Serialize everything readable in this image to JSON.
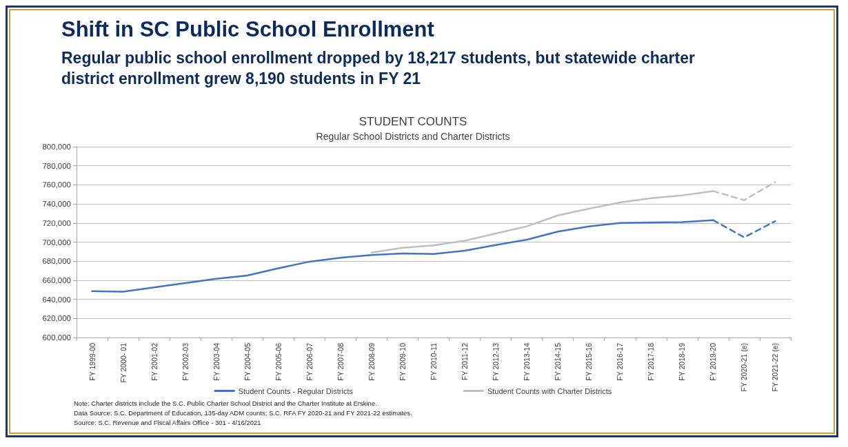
{
  "chart_data": {
    "type": "line",
    "title": "Shift in SC Public School Enrollment",
    "subtitle": "Regular public school enrollment dropped by 18,217 students, but statewide charter district enrollment grew 8,190 students in FY 21",
    "annotations": [
      "STUDENT COUNTS",
      "Regular School Districts and Charter Districts",
      "Note: Charter districts include the S.C. Public Charter School District and the Charter Institute at Erskine.",
      "Data Source: S.C. Department of Education, 135-day ADM counts; S.C. RFA FY 2020-21 and FY 2021-22 estimates.",
      "Source: S.C. Revenue and Fiscal Affairs Office - 301 - 4/16/2021"
    ],
    "categories": [
      "FY 1999-00",
      "FY 2000- 01",
      "FY 2001-02",
      "FY 2002-03",
      "FY 2003-04",
      "FY 2004-05",
      "FY 2005-06",
      "FY 2006-07",
      "FY 2007-08",
      "FY 2008-09",
      "FY 2009-10",
      "FY 2010-11",
      "FY 2011-12",
      "FY 2012-13",
      "FY 2013-14",
      "FY 2014-15",
      "FY 2015-16",
      "FY 2016-17",
      "FY 2017-18",
      "FY 2018-19",
      "FY 2019-20",
      "FY 2020-21 (e)",
      "FY 2021-22 (e)"
    ],
    "series": [
      {
        "name": "Student Counts - Regular Districts",
        "color": "#4472c4",
        "values": [
          648500,
          648000,
          652500,
          657000,
          661500,
          665000,
          672500,
          679500,
          683500,
          686500,
          688000,
          687500,
          691000,
          697000,
          702500,
          711000,
          716500,
          720000,
          720500,
          721000,
          723000,
          null,
          null
        ]
      },
      {
        "color": "#4472c4",
        "line_style": "dashed",
        "values": [
          null,
          null,
          null,
          null,
          null,
          null,
          null,
          null,
          null,
          null,
          null,
          null,
          null,
          null,
          null,
          null,
          null,
          null,
          null,
          null,
          723000,
          705000,
          722000
        ]
      },
      {
        "name": "Student Counts with Charter Districts",
        "color": "#bfbfbf",
        "values": [
          null,
          null,
          null,
          null,
          null,
          null,
          null,
          null,
          null,
          689000,
          694000,
          696500,
          701500,
          709000,
          716500,
          728000,
          735000,
          741500,
          746000,
          749000,
          753500,
          null,
          null
        ]
      },
      {
        "color": "#bfbfbf",
        "line_style": "dashed",
        "values": [
          null,
          null,
          null,
          null,
          null,
          null,
          null,
          null,
          null,
          null,
          null,
          null,
          null,
          null,
          null,
          null,
          null,
          null,
          null,
          null,
          753500,
          744000,
          763000
        ]
      }
    ],
    "ylim": [
      600000,
      800000
    ],
    "yticks": [
      {
        "value": 600000,
        "label": "600,000"
      },
      {
        "value": 620000,
        "label": "620,000"
      },
      {
        "value": 640000,
        "label": "640,000"
      },
      {
        "value": 660000,
        "label": "660,000"
      },
      {
        "value": 680000,
        "label": "680,000"
      },
      {
        "value": 700000,
        "label": "700,000"
      },
      {
        "value": 720000,
        "label": "720,000"
      },
      {
        "value": 740000,
        "label": "740,000"
      },
      {
        "value": 760000,
        "label": "760,000"
      },
      {
        "value": 780000,
        "label": "780,000"
      },
      {
        "value": 800000,
        "label": "800,000"
      }
    ],
    "grid": "y",
    "legend": "bottom",
    "marker": "none",
    "line_style": "solid"
  }
}
